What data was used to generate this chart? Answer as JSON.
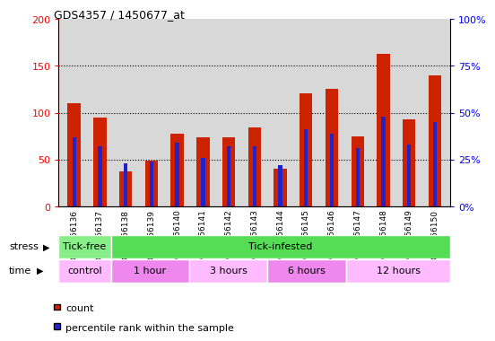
{
  "title": "GDS4357 / 1450677_at",
  "samples": [
    "GSM956136",
    "GSM956137",
    "GSM956138",
    "GSM956139",
    "GSM956140",
    "GSM956141",
    "GSM956142",
    "GSM956143",
    "GSM956144",
    "GSM956145",
    "GSM956146",
    "GSM956147",
    "GSM956148",
    "GSM956149",
    "GSM956150"
  ],
  "counts": [
    110,
    95,
    37,
    49,
    78,
    74,
    74,
    84,
    40,
    121,
    125,
    75,
    163,
    93,
    140
  ],
  "percentiles_pct": [
    37,
    32,
    23,
    24,
    34,
    26,
    32,
    32,
    22,
    41,
    39,
    31,
    48,
    33,
    45
  ],
  "ylim_left": [
    0,
    200
  ],
  "ylim_right": [
    0,
    100
  ],
  "yticks_left": [
    0,
    50,
    100,
    150,
    200
  ],
  "yticks_right": [
    0,
    25,
    50,
    75,
    100
  ],
  "ytick_labels_left": [
    "0",
    "50",
    "100",
    "150",
    "200"
  ],
  "ytick_labels_right": [
    "0%",
    "25%",
    "50%",
    "75%",
    "100%"
  ],
  "bar_color": "#cc2200",
  "percentile_color": "#2222cc",
  "plot_bg": "#d8d8d8",
  "stress_groups": [
    {
      "label": "Tick-free",
      "start": 0,
      "end": 2,
      "color": "#88ee88"
    },
    {
      "label": "Tick-infested",
      "start": 2,
      "end": 15,
      "color": "#55dd55"
    }
  ],
  "time_groups": [
    {
      "label": "control",
      "start": 0,
      "end": 2,
      "color": "#ffbbff"
    },
    {
      "label": "1 hour",
      "start": 2,
      "end": 5,
      "color": "#ee88ee"
    },
    {
      "label": "3 hours",
      "start": 5,
      "end": 8,
      "color": "#ffbbff"
    },
    {
      "label": "6 hours",
      "start": 8,
      "end": 11,
      "color": "#ee88ee"
    },
    {
      "label": "12 hours",
      "start": 11,
      "end": 15,
      "color": "#ffbbff"
    }
  ],
  "stress_label": "stress",
  "time_label": "time",
  "legend_count": "count",
  "legend_percentile": "percentile rank within the sample",
  "bar_width": 0.5,
  "percentile_bar_width": 0.15
}
